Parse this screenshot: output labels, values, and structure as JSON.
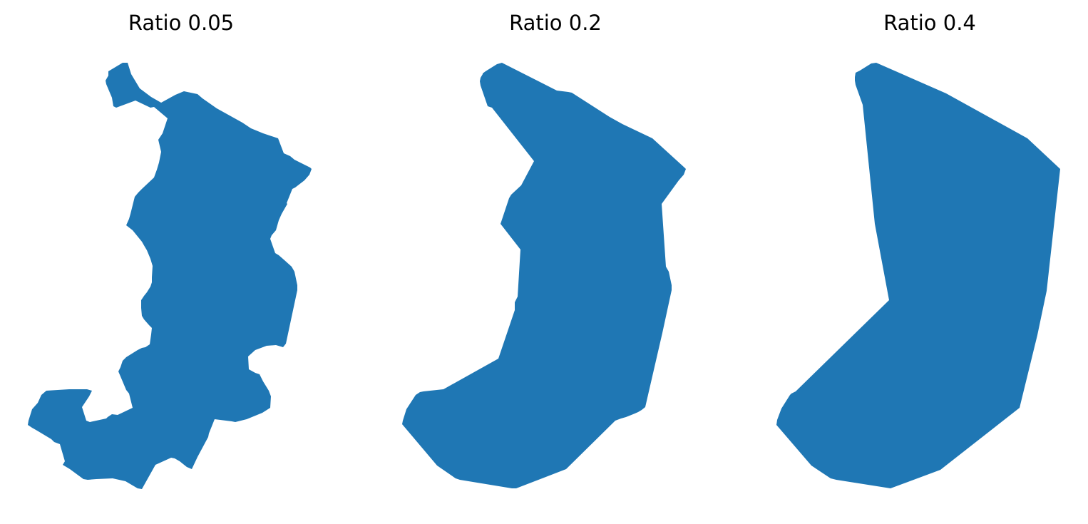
{
  "chart_data": [
    {
      "type": "polygon",
      "title": "Ratio 0.05",
      "color": "#1f77b4",
      "axes": "off"
    },
    {
      "type": "polygon",
      "title": "Ratio 0.2",
      "color": "#1f77b4",
      "axes": "off"
    },
    {
      "type": "polygon",
      "title": "Ratio 0.4",
      "color": "#1f77b4",
      "axes": "off"
    }
  ]
}
